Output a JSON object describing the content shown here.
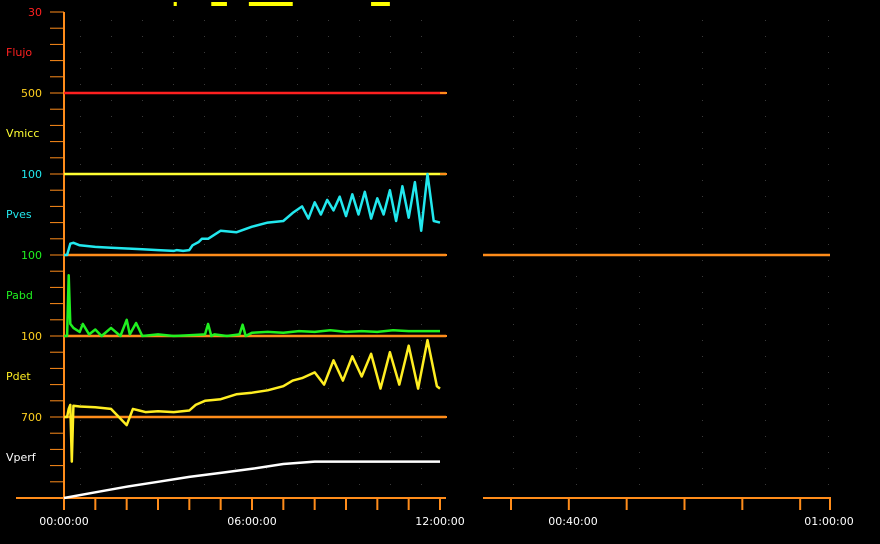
{
  "colors": {
    "background": "#000000",
    "axis": "#ff8c1a",
    "grid_dot": "#3a3a3a",
    "scale_label": "#ffd020",
    "flujo": "#ff2020",
    "vmicc": "#ffff33",
    "pves": "#22e8ee",
    "pabd": "#20f020",
    "pdet": "#ffee22",
    "vperf": "#ffffff",
    "event_marker": "#ffff00"
  },
  "chart_data": {
    "type": "line",
    "title": "",
    "x_axis": {
      "left_panel": {
        "range": [
          "00:00:00",
          "12:00:00"
        ],
        "tick_labels": [
          "00:00:00",
          "06:00:00",
          "12:00:00"
        ]
      },
      "right_panel": {
        "range": [
          "00:00:00",
          "01:00:00"
        ],
        "tick_labels": [
          "00:40:00",
          "01:00:00"
        ]
      }
    },
    "channels": [
      {
        "name": "Flujo",
        "scale_label": "30",
        "color_key": "flujo"
      },
      {
        "name": "Vmicc",
        "scale_label": "500",
        "color_key": "vmicc"
      },
      {
        "name": "Pves",
        "scale_label": "100",
        "color_key": "pves"
      },
      {
        "name": "Pabd",
        "scale_label": "100",
        "color_key": "pabd"
      },
      {
        "name": "Pdet",
        "scale_label": "100",
        "color_key": "pdet"
      },
      {
        "name": "Vperf",
        "scale_label": "700",
        "color_key": "vperf"
      }
    ],
    "event_markers_hours": [
      [
        3.5,
        3.6
      ],
      [
        4.7,
        5.2
      ],
      [
        5.9,
        7.3
      ],
      [
        9.8,
        10.4
      ]
    ],
    "series": [
      {
        "name": "Flujo",
        "description_fraction": "level as fraction of channel range",
        "x_hours": [
          0,
          11.5
        ],
        "y": [
          0.0,
          0.0
        ]
      },
      {
        "name": "Vmicc",
        "x_hours": [
          0,
          11.5
        ],
        "y": [
          0.0,
          0.0
        ]
      },
      {
        "name": "Pves",
        "x_hours": [
          0,
          0.1,
          0.2,
          0.3,
          0.5,
          1.0,
          1.5,
          2.0,
          2.5,
          3.0,
          3.5,
          3.6,
          3.8,
          4.0,
          4.1,
          4.3,
          4.4,
          4.6,
          5.0,
          5.5,
          6.0,
          6.5,
          7.0,
          7.3,
          7.6,
          7.8,
          8.0,
          8.2,
          8.4,
          8.6,
          8.8,
          9.0,
          9.2,
          9.4,
          9.6,
          9.8,
          10.0,
          10.2,
          10.4,
          10.6,
          10.8,
          11.0,
          11.2,
          11.4,
          11.6,
          11.8,
          12.0
        ],
        "y": [
          0.0,
          0.0,
          0.14,
          0.15,
          0.12,
          0.1,
          0.09,
          0.08,
          0.07,
          0.06,
          0.05,
          0.06,
          0.05,
          0.06,
          0.12,
          0.16,
          0.2,
          0.2,
          0.3,
          0.28,
          0.35,
          0.4,
          0.42,
          0.52,
          0.6,
          0.45,
          0.65,
          0.5,
          0.68,
          0.55,
          0.72,
          0.48,
          0.75,
          0.5,
          0.78,
          0.45,
          0.7,
          0.5,
          0.8,
          0.42,
          0.85,
          0.46,
          0.9,
          0.3,
          1.0,
          0.42,
          0.4
        ]
      },
      {
        "name": "Pabd",
        "x_hours": [
          0,
          0.1,
          0.15,
          0.2,
          0.3,
          0.5,
          0.6,
          0.8,
          1.0,
          1.2,
          1.5,
          1.8,
          2.0,
          2.1,
          2.3,
          2.5,
          3.0,
          3.5,
          4.0,
          4.5,
          4.6,
          4.7,
          4.8,
          5.2,
          5.6,
          5.7,
          5.8,
          6.0,
          6.5,
          7.0,
          7.5,
          8.0,
          8.5,
          9.0,
          9.5,
          10.0,
          10.5,
          11.0,
          11.5,
          12.0
        ],
        "y": [
          0.0,
          0.0,
          0.75,
          0.15,
          0.1,
          0.05,
          0.15,
          0.02,
          0.08,
          0.0,
          0.1,
          0.0,
          0.2,
          0.02,
          0.16,
          0.0,
          0.02,
          0.0,
          0.01,
          0.02,
          0.15,
          0.0,
          0.02,
          0.0,
          0.02,
          0.14,
          0.0,
          0.04,
          0.05,
          0.04,
          0.06,
          0.05,
          0.07,
          0.05,
          0.06,
          0.05,
          0.07,
          0.06,
          0.06,
          0.06
        ]
      },
      {
        "name": "Pdet",
        "x_hours": [
          0,
          0.1,
          0.15,
          0.2,
          0.25,
          0.3,
          0.5,
          1.0,
          1.5,
          2.0,
          2.2,
          2.4,
          2.6,
          3.0,
          3.5,
          4.0,
          4.2,
          4.5,
          5.0,
          5.5,
          6.0,
          6.5,
          7.0,
          7.3,
          7.6,
          8.0,
          8.3,
          8.6,
          8.9,
          9.2,
          9.5,
          9.8,
          10.1,
          10.4,
          10.7,
          11.0,
          11.3,
          11.6,
          11.9,
          12.0
        ],
        "y": [
          0.0,
          0.0,
          0.1,
          0.15,
          -0.55,
          0.14,
          0.13,
          0.12,
          0.1,
          -0.1,
          0.1,
          0.08,
          0.06,
          0.07,
          0.06,
          0.08,
          0.15,
          0.2,
          0.22,
          0.28,
          0.3,
          0.33,
          0.38,
          0.45,
          0.48,
          0.55,
          0.4,
          0.7,
          0.45,
          0.75,
          0.5,
          0.78,
          0.35,
          0.8,
          0.4,
          0.88,
          0.35,
          0.95,
          0.38,
          0.35
        ]
      },
      {
        "name": "Vperf",
        "x_hours": [
          0,
          1.0,
          2.0,
          3.0,
          4.0,
          5.0,
          6.0,
          7.0,
          8.0,
          9.0,
          10.0,
          11.0,
          12.0
        ],
        "y": [
          0.0,
          0.07,
          0.14,
          0.2,
          0.26,
          0.31,
          0.36,
          0.42,
          0.45,
          0.45,
          0.45,
          0.45,
          0.45
        ]
      }
    ]
  }
}
